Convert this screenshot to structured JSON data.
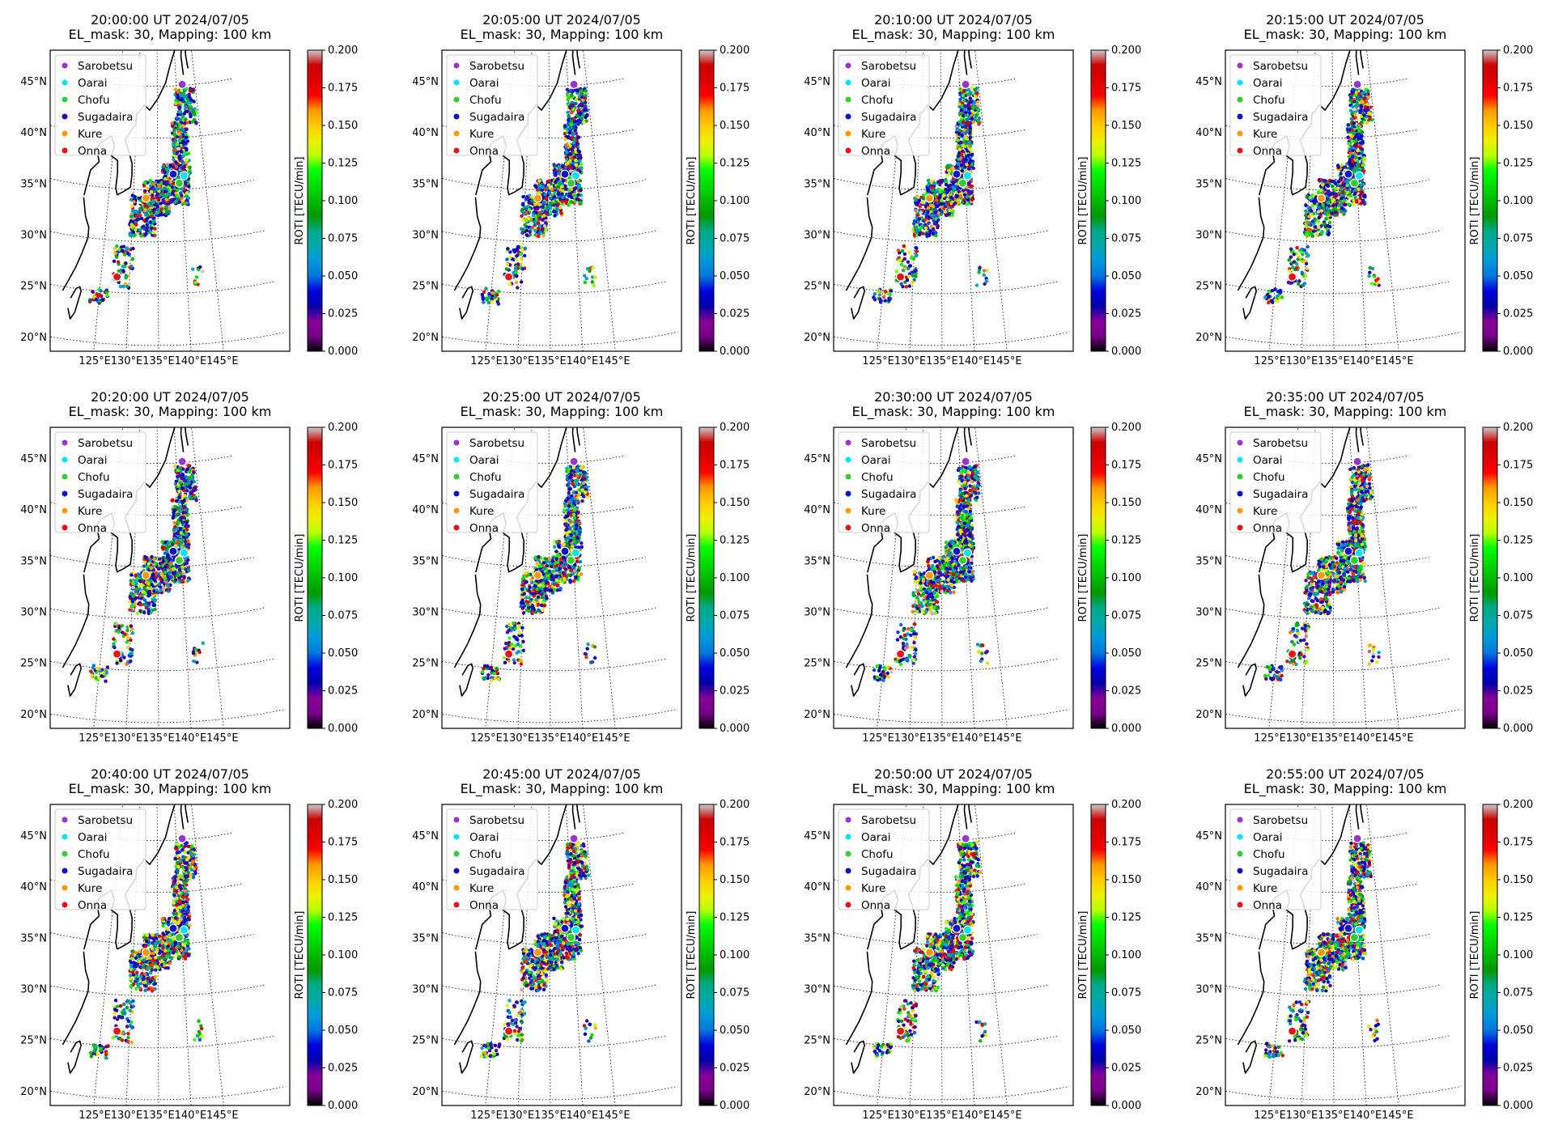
{
  "figure": {
    "colorbar": {
      "label": "ROTI [TECU/min]",
      "ticks": [
        "0.000",
        "0.025",
        "0.050",
        "0.075",
        "0.100",
        "0.125",
        "0.150",
        "0.175",
        "0.200"
      ],
      "range": [
        0.0,
        0.2
      ],
      "colormap": "nipy_spectral"
    },
    "lon_labels": [
      "125°E",
      "130°E",
      "135°E",
      "140°E",
      "145°E"
    ],
    "lat_labels": [
      "20°N",
      "25°N",
      "30°N",
      "35°N",
      "40°N",
      "45°N"
    ],
    "legend": [
      {
        "label": "Sarobetsu",
        "color": "#9933cc"
      },
      {
        "label": "Oarai",
        "color": "#00e5ff"
      },
      {
        "label": "Chofu",
        "color": "#33cc33"
      },
      {
        "label": "Sugadaira",
        "color": "#1111cc"
      },
      {
        "label": "Kure",
        "color": "#ff9900"
      },
      {
        "label": "Onna",
        "color": "#ee1111"
      }
    ],
    "panels": [
      {
        "title": "20:00:00 UT 2024/07/05",
        "subtitle": "EL_mask: 30, Mapping: 100 km"
      },
      {
        "title": "20:05:00 UT 2024/07/05",
        "subtitle": "EL_mask: 30, Mapping: 100 km"
      },
      {
        "title": "20:10:00 UT 2024/07/05",
        "subtitle": "EL_mask: 30, Mapping: 100 km"
      },
      {
        "title": "20:15:00 UT 2024/07/05",
        "subtitle": "EL_mask: 30, Mapping: 100 km"
      },
      {
        "title": "20:20:00 UT 2024/07/05",
        "subtitle": "EL_mask: 30, Mapping: 100 km"
      },
      {
        "title": "20:25:00 UT 2024/07/05",
        "subtitle": "EL_mask: 30, Mapping: 100 km"
      },
      {
        "title": "20:30:00 UT 2024/07/05",
        "subtitle": "EL_mask: 30, Mapping: 100 km"
      },
      {
        "title": "20:35:00 UT 2024/07/05",
        "subtitle": "EL_mask: 30, Mapping: 100 km"
      },
      {
        "title": "20:40:00 UT 2024/07/05",
        "subtitle": "EL_mask: 30, Mapping: 100 km"
      },
      {
        "title": "20:45:00 UT 2024/07/05",
        "subtitle": "EL_mask: 30, Mapping: 100 km"
      },
      {
        "title": "20:50:00 UT 2024/07/05",
        "subtitle": "EL_mask: 30, Mapping: 100 km"
      },
      {
        "title": "20:55:00 UT 2024/07/05",
        "subtitle": "EL_mask: 30, Mapping: 100 km"
      }
    ]
  },
  "stations": [
    {
      "name": "Sarobetsu",
      "lon": 141.6,
      "lat": 45.1
    },
    {
      "name": "Oarai",
      "lon": 140.6,
      "lat": 36.3
    },
    {
      "name": "Chofu",
      "lon": 139.5,
      "lat": 35.6
    },
    {
      "name": "Sugadaira",
      "lon": 138.3,
      "lat": 36.5
    },
    {
      "name": "Kure",
      "lon": 132.6,
      "lat": 34.2
    },
    {
      "name": "Onna",
      "lon": 127.8,
      "lat": 26.5
    }
  ]
}
